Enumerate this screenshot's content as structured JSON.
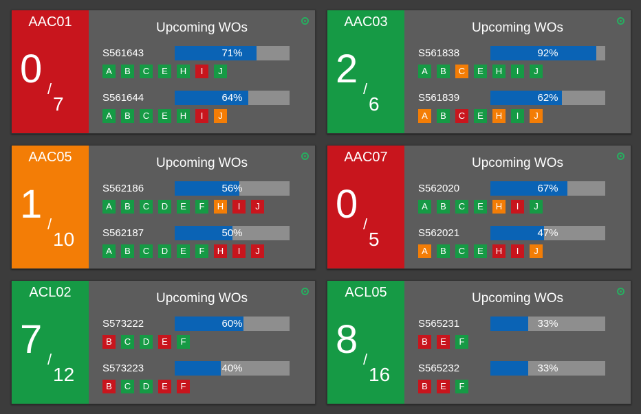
{
  "panel_title": "Upcoming WOs",
  "colors": {
    "green": "#169a45",
    "red": "#c8151d",
    "orange": "#f37d06",
    "progress": "#0a63b5",
    "track": "#8e8e8e",
    "panel": "#5c5c5c"
  },
  "status_icon": "target-icon",
  "cards": [
    {
      "station": "AAC01",
      "count": "0",
      "total": "7",
      "status": "red",
      "work_orders": [
        {
          "id": "S561643",
          "progress": 71,
          "progress_label": "71%",
          "ops": [
            [
              "A",
              "green"
            ],
            [
              "B",
              "green"
            ],
            [
              "C",
              "green"
            ],
            [
              "E",
              "green"
            ],
            [
              "H",
              "green"
            ],
            [
              "I",
              "red"
            ],
            [
              "J",
              "green"
            ]
          ]
        },
        {
          "id": "S561644",
          "progress": 64,
          "progress_label": "64%",
          "ops": [
            [
              "A",
              "green"
            ],
            [
              "B",
              "green"
            ],
            [
              "C",
              "green"
            ],
            [
              "E",
              "green"
            ],
            [
              "H",
              "green"
            ],
            [
              "I",
              "red"
            ],
            [
              "J",
              "orange"
            ]
          ]
        }
      ]
    },
    {
      "station": "AAC03",
      "count": "2",
      "total": "6",
      "status": "green",
      "work_orders": [
        {
          "id": "S561838",
          "progress": 92,
          "progress_label": "92%",
          "ops": [
            [
              "A",
              "green"
            ],
            [
              "B",
              "green"
            ],
            [
              "C",
              "orange"
            ],
            [
              "E",
              "green"
            ],
            [
              "H",
              "green"
            ],
            [
              "I",
              "green"
            ],
            [
              "J",
              "green"
            ]
          ]
        },
        {
          "id": "S561839",
          "progress": 62,
          "progress_label": "62%",
          "ops": [
            [
              "A",
              "orange"
            ],
            [
              "B",
              "green"
            ],
            [
              "C",
              "red"
            ],
            [
              "E",
              "green"
            ],
            [
              "H",
              "orange"
            ],
            [
              "I",
              "green"
            ],
            [
              "J",
              "orange"
            ]
          ]
        }
      ]
    },
    {
      "station": "AAC05",
      "count": "1",
      "total": "10",
      "status": "orange",
      "work_orders": [
        {
          "id": "S562186",
          "progress": 56,
          "progress_label": "56%",
          "ops": [
            [
              "A",
              "green"
            ],
            [
              "B",
              "green"
            ],
            [
              "C",
              "green"
            ],
            [
              "D",
              "green"
            ],
            [
              "E",
              "green"
            ],
            [
              "F",
              "green"
            ],
            [
              "H",
              "orange"
            ],
            [
              "I",
              "red"
            ],
            [
              "J",
              "red"
            ]
          ]
        },
        {
          "id": "S562187",
          "progress": 50,
          "progress_label": "50%",
          "ops": [
            [
              "A",
              "green"
            ],
            [
              "B",
              "green"
            ],
            [
              "C",
              "green"
            ],
            [
              "D",
              "green"
            ],
            [
              "E",
              "green"
            ],
            [
              "F",
              "green"
            ],
            [
              "H",
              "red"
            ],
            [
              "I",
              "red"
            ],
            [
              "J",
              "red"
            ]
          ]
        }
      ]
    },
    {
      "station": "AAC07",
      "count": "0",
      "total": "5",
      "status": "red",
      "work_orders": [
        {
          "id": "S562020",
          "progress": 67,
          "progress_label": "67%",
          "ops": [
            [
              "A",
              "green"
            ],
            [
              "B",
              "green"
            ],
            [
              "C",
              "green"
            ],
            [
              "E",
              "green"
            ],
            [
              "H",
              "orange"
            ],
            [
              "I",
              "red"
            ],
            [
              "J",
              "green"
            ]
          ]
        },
        {
          "id": "S562021",
          "progress": 47,
          "progress_label": "47%",
          "ops": [
            [
              "A",
              "orange"
            ],
            [
              "B",
              "green"
            ],
            [
              "C",
              "green"
            ],
            [
              "E",
              "green"
            ],
            [
              "H",
              "red"
            ],
            [
              "I",
              "red"
            ],
            [
              "J",
              "orange"
            ]
          ]
        }
      ]
    },
    {
      "station": "ACL02",
      "count": "7",
      "total": "12",
      "status": "green",
      "work_orders": [
        {
          "id": "S573222",
          "progress": 60,
          "progress_label": "60%",
          "ops": [
            [
              "B",
              "red"
            ],
            [
              "C",
              "green"
            ],
            [
              "D",
              "green"
            ],
            [
              "E",
              "red"
            ],
            [
              "F",
              "green"
            ]
          ]
        },
        {
          "id": "S573223",
          "progress": 40,
          "progress_label": "40%",
          "ops": [
            [
              "B",
              "red"
            ],
            [
              "C",
              "green"
            ],
            [
              "D",
              "green"
            ],
            [
              "E",
              "red"
            ],
            [
              "F",
              "red"
            ]
          ]
        }
      ]
    },
    {
      "station": "ACL05",
      "count": "8",
      "total": "16",
      "status": "green",
      "work_orders": [
        {
          "id": "S565231",
          "progress": 33,
          "progress_label": "33%",
          "ops": [
            [
              "B",
              "red"
            ],
            [
              "E",
              "red"
            ],
            [
              "F",
              "green"
            ]
          ]
        },
        {
          "id": "S565232",
          "progress": 33,
          "progress_label": "33%",
          "ops": [
            [
              "B",
              "red"
            ],
            [
              "E",
              "red"
            ],
            [
              "F",
              "green"
            ]
          ]
        }
      ]
    }
  ]
}
